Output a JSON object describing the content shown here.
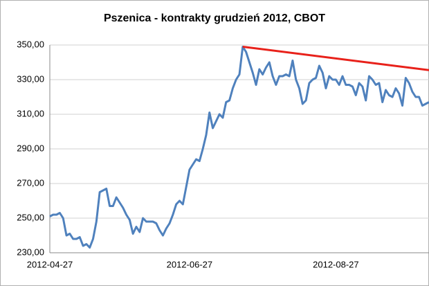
{
  "chart_data": {
    "type": "line",
    "title": "Pszenica - kontrakty grudzień 2012, CBOT",
    "categories": [
      "2012-04-27",
      null,
      null,
      null,
      null,
      null,
      null,
      null,
      null,
      null,
      null,
      null,
      null,
      null,
      null,
      null,
      null,
      null,
      null,
      null,
      null,
      null,
      null,
      null,
      null,
      null,
      null,
      null,
      null,
      null,
      null,
      null,
      null,
      null,
      null,
      null,
      null,
      null,
      null,
      null,
      null,
      null,
      "2012-06-27",
      null,
      null,
      null,
      null,
      null,
      null,
      null,
      null,
      null,
      null,
      null,
      null,
      null,
      null,
      null,
      null,
      null,
      null,
      null,
      null,
      null,
      null,
      null,
      null,
      null,
      null,
      null,
      null,
      null,
      null,
      null,
      null,
      null,
      null,
      null,
      null,
      null,
      null,
      null,
      null,
      null,
      null,
      null,
      "2012-08-27",
      null,
      null,
      null,
      null,
      null,
      null,
      null,
      null,
      null,
      null,
      null,
      null,
      null,
      null,
      null,
      null,
      null,
      null,
      null,
      null,
      null,
      null,
      null,
      null,
      null,
      null,
      null,
      null
    ],
    "series": [
      {
        "color": "#4f81bd",
        "values": [
          251,
          252,
          252,
          253,
          250,
          240,
          241,
          238,
          238,
          239,
          234,
          235,
          233,
          238,
          248,
          265,
          266,
          267,
          257,
          257,
          262,
          259,
          256,
          252,
          249,
          241,
          245,
          242,
          250,
          248,
          248,
          248,
          247,
          243,
          240,
          244,
          247,
          252,
          258,
          260,
          258,
          268,
          278,
          281,
          284,
          283,
          290,
          298,
          311,
          302,
          306,
          310,
          308,
          317,
          318,
          325,
          330,
          333,
          349,
          346,
          340,
          334,
          327,
          336,
          333,
          337,
          340,
          332,
          327,
          332,
          332,
          333,
          332,
          341,
          330,
          325,
          316,
          318,
          328,
          330,
          331,
          338,
          334,
          325,
          332,
          330,
          330,
          327,
          332,
          327,
          327,
          326,
          321,
          328,
          326,
          318,
          332,
          330,
          327,
          328,
          317,
          324,
          321,
          320,
          325,
          322,
          315,
          331,
          328,
          323,
          320,
          320,
          315,
          316,
          317
        ]
      }
    ],
    "trend": {
      "start": [
        58,
        349
      ],
      "end": [
        114,
        335.5
      ],
      "color": "#e8211a"
    },
    "ylim": [
      230,
      350
    ],
    "yticks": [
      {
        "value": 230,
        "label": "230,00"
      },
      {
        "value": 250,
        "label": "250,00"
      },
      {
        "value": 270,
        "label": "270,00"
      },
      {
        "value": 290,
        "label": "290,00"
      },
      {
        "value": 310,
        "label": "310,00"
      },
      {
        "value": 330,
        "label": "330,00"
      },
      {
        "value": 350,
        "label": "350,00"
      }
    ],
    "grid": true
  }
}
